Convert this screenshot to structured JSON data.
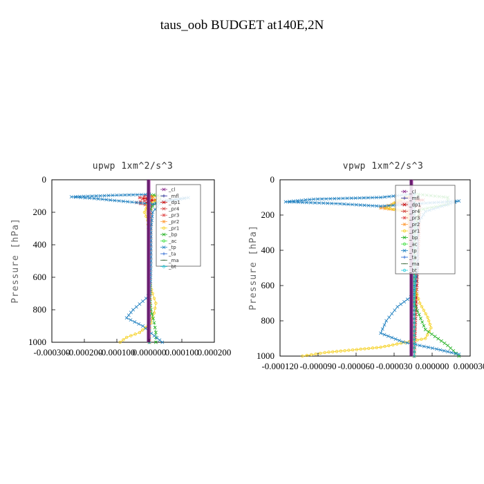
{
  "figure": {
    "title": "taus_oob  BUDGET at140E,2N"
  },
  "chart_data": [
    {
      "type": "line",
      "title": "upwp   1xm^2/s^3",
      "ylabel": "Pressure [hPa]",
      "xlabel": "",
      "xlim": [
        -0.0003,
        0.0002
      ],
      "ylim": [
        1000,
        0
      ],
      "x_tick_labels": [
        "-0.000300",
        "-0.000200",
        "-0.000100",
        "0.000000",
        "0.000100",
        "0.000200"
      ],
      "y_tick_labels": [
        "0",
        "200",
        "400",
        "600",
        "800",
        "1000"
      ],
      "y_ticks": [
        0,
        200,
        400,
        600,
        800,
        1000
      ],
      "legend_position": "upper-right",
      "series": [
        {
          "name": "_cl",
          "color": "#8c2d8c",
          "marker": "x",
          "points": [
            [
              0.0,
              90
            ],
            [
              0.0,
              200
            ],
            [
              0.0,
              400
            ],
            [
              0.0,
              600
            ],
            [
              0.0,
              800
            ],
            [
              0.0,
              1000
            ]
          ]
        },
        {
          "name": "_mfl",
          "color": "#2c2c9c",
          "marker": "+",
          "points": [
            [
              0.0,
              90
            ],
            [
              0.0,
              400
            ],
            [
              0.0,
              1000
            ]
          ]
        },
        {
          "name": "_dp1",
          "color": "#cc0000",
          "marker": "x",
          "points": [
            [
              0.0,
              90
            ],
            [
              1e-05,
              100
            ],
            [
              -2e-05,
              115
            ],
            [
              2e-05,
              125
            ],
            [
              -1e-05,
              140
            ],
            [
              1e-05,
              150
            ],
            [
              0.0,
              170
            ],
            [
              0.0,
              1000
            ]
          ]
        },
        {
          "name": "_pr4",
          "color": "#d04040",
          "marker": "x",
          "points": [
            [
              0.0,
              90
            ],
            [
              -5e-06,
              120
            ],
            [
              5e-06,
              140
            ],
            [
              0.0,
              1000
            ]
          ]
        },
        {
          "name": "_pr3",
          "color": "#e05050",
          "marker": "*",
          "points": [
            [
              0.0,
              90
            ],
            [
              -3e-05,
              110
            ],
            [
              -1.5e-05,
              130
            ],
            [
              -4e-05,
              140
            ],
            [
              0.0,
              160
            ],
            [
              0.0,
              1000
            ]
          ]
        },
        {
          "name": "_pr2",
          "color": "#ffa040",
          "marker": "*",
          "points": [
            [
              0.0,
              90
            ],
            [
              1e-05,
              110
            ],
            [
              -1e-05,
              150
            ],
            [
              -5e-06,
              200
            ],
            [
              0.0,
              300
            ],
            [
              0.0,
              1000
            ]
          ]
        },
        {
          "name": "_pr1",
          "color": "#f5d020",
          "marker": "o",
          "points": [
            [
              0.0,
              90
            ],
            [
              3e-05,
              110
            ],
            [
              -5e-06,
              160
            ],
            [
              -1.5e-05,
              200
            ],
            [
              -5e-06,
              250
            ],
            [
              0.0,
              400
            ],
            [
              -3e-06,
              600
            ],
            [
              1e-05,
              700
            ],
            [
              2e-05,
              760
            ],
            [
              1.5e-05,
              820
            ],
            [
              5e-06,
              880
            ],
            [
              -3e-05,
              940
            ],
            [
              -7e-05,
              970
            ],
            [
              -9e-05,
              1000
            ]
          ]
        },
        {
          "name": "_bp",
          "color": "#20b020",
          "marker": "x",
          "points": [
            [
              0.0,
              90
            ],
            [
              4e-05,
              100
            ],
            [
              3e-05,
              130
            ],
            [
              1e-05,
              160
            ],
            [
              0.0,
              200
            ],
            [
              0.0,
              700
            ],
            [
              5e-06,
              800
            ],
            [
              1.5e-05,
              880
            ],
            [
              2e-05,
              940
            ],
            [
              2e-05,
              1000
            ]
          ]
        },
        {
          "name": "_ac",
          "color": "#40e040",
          "marker": "o",
          "points": [
            [
              0.0,
              90
            ],
            [
              0.0,
              1000
            ]
          ]
        },
        {
          "name": "_tp",
          "color": "#2080c0",
          "marker": "x",
          "points": [
            [
              0.0,
              90
            ],
            [
              -0.0001,
              95
            ],
            [
              -0.00024,
              105
            ],
            [
              -0.00017,
              115
            ],
            [
              -0.00012,
              125
            ],
            [
              -4e-05,
              140
            ],
            [
              1e-05,
              150
            ],
            [
              0.00012,
              110
            ],
            [
              4e-05,
              130
            ],
            [
              1e-05,
              200
            ],
            [
              5e-06,
              300
            ],
            [
              5e-06,
              500
            ],
            [
              3e-06,
              700
            ],
            [
              -1e-05,
              730
            ],
            [
              -5e-05,
              800
            ],
            [
              -7e-05,
              850
            ],
            [
              -2e-05,
              900
            ],
            [
              1.5e-05,
              960
            ],
            [
              4e-05,
              1000
            ]
          ]
        },
        {
          "name": "_ta",
          "color": "#2060d0",
          "marker": "+",
          "points": [
            [
              0.0,
              90
            ],
            [
              0.0,
              1000
            ]
          ]
        },
        {
          "name": "_ma",
          "color": "#306030",
          "marker": "-",
          "points": [
            [
              0.0,
              90
            ],
            [
              0.0,
              1000
            ]
          ]
        },
        {
          "name": "_bt",
          "color": "#30d0e0",
          "marker": "o",
          "points": [
            [
              0.0,
              90
            ],
            [
              0.0,
              1000
            ]
          ]
        }
      ]
    },
    {
      "type": "line",
      "title": "vpwp   1xm^2/s^3",
      "ylabel": "Pressure [hPa]",
      "xlabel": "",
      "xlim": [
        -0.00012,
        5e-05
      ],
      "ylim": [
        1000,
        0
      ],
      "x_tick_labels": [
        "-0.000120",
        "-0.000090",
        "-0.000060",
        "-0.000030",
        "0.000000",
        "0.000030"
      ],
      "y_tick_labels": [
        "0",
        "200",
        "400",
        "600",
        "800",
        "1000"
      ],
      "y_ticks": [
        0,
        200,
        400,
        600,
        800,
        1000
      ],
      "legend_position": "upper-right",
      "series": [
        {
          "name": "_cl",
          "color": "#8c2d8c",
          "marker": "x",
          "points": [
            [
              0.0,
              80
            ],
            [
              0.0,
              300
            ],
            [
              0.0,
              600
            ],
            [
              0.0,
              1000
            ]
          ]
        },
        {
          "name": "_mfl",
          "color": "#2c2c9c",
          "marker": "+",
          "points": [
            [
              0.0,
              80
            ],
            [
              0.0,
              1000
            ]
          ]
        },
        {
          "name": "_dp1",
          "color": "#cc0000",
          "marker": "x",
          "points": [
            [
              0.0,
              80
            ],
            [
              -8e-06,
              100
            ],
            [
              8e-06,
              115
            ],
            [
              -1e-05,
              130
            ],
            [
              5e-06,
              150
            ],
            [
              0.0,
              1000
            ]
          ]
        },
        {
          "name": "_pr4",
          "color": "#d04040",
          "marker": "x",
          "points": [
            [
              0.0,
              80
            ],
            [
              0.0,
              1000
            ]
          ]
        },
        {
          "name": "_pr3",
          "color": "#e05050",
          "marker": "*",
          "points": [
            [
              0.0,
              80
            ],
            [
              -1e-05,
              110
            ],
            [
              -1.5e-05,
              130
            ],
            [
              -5e-06,
              150
            ],
            [
              0.0,
              1000
            ]
          ]
        },
        {
          "name": "_pr2",
          "color": "#ffa040",
          "marker": "*",
          "points": [
            [
              0.0,
              80
            ],
            [
              -1e-05,
              110
            ],
            [
              -2e-05,
              140
            ],
            [
              -3e-05,
              160
            ],
            [
              -5e-06,
              180
            ],
            [
              0.0,
              1000
            ]
          ]
        },
        {
          "name": "_pr1",
          "color": "#f5d020",
          "marker": "o",
          "points": [
            [
              0.0,
              80
            ],
            [
              -1.5e-05,
              120
            ],
            [
              -2.5e-05,
              160
            ],
            [
              -8e-06,
              180
            ],
            [
              0.0,
              300
            ],
            [
              0.0,
              600
            ],
            [
              5e-06,
              700
            ],
            [
              1.2e-05,
              780
            ],
            [
              1.5e-05,
              840
            ],
            [
              1e-05,
              900
            ],
            [
              -3e-05,
              950
            ],
            [
              -8e-05,
              980
            ],
            [
              -0.0001,
              1000
            ]
          ]
        },
        {
          "name": "_bp",
          "color": "#20b020",
          "marker": "x",
          "points": [
            [
              0.0,
              80
            ],
            [
              3e-05,
              100
            ],
            [
              3e-05,
              140
            ],
            [
              5e-06,
              170
            ],
            [
              0.0,
              300
            ],
            [
              0.0,
              700
            ],
            [
              1e-05,
              850
            ],
            [
              3e-05,
              940
            ],
            [
              4e-05,
              1000
            ]
          ]
        },
        {
          "name": "_ac",
          "color": "#40e040",
          "marker": "o",
          "points": [
            [
              0.0,
              80
            ],
            [
              0.0,
              1000
            ]
          ]
        },
        {
          "name": "_tp",
          "color": "#2080c0",
          "marker": "x",
          "points": [
            [
              0.0,
              80
            ],
            [
              -3e-05,
              100
            ],
            [
              -9e-05,
              110
            ],
            [
              -0.000115,
              125
            ],
            [
              -7e-05,
              135
            ],
            [
              -3e-05,
              150
            ],
            [
              4e-05,
              120
            ],
            [
              1e-05,
              180
            ],
            [
              3e-06,
              250
            ],
            [
              3e-06,
              500
            ],
            [
              0.0,
              650
            ],
            [
              -1.5e-05,
              720
            ],
            [
              -2.5e-05,
              800
            ],
            [
              -3e-05,
              870
            ],
            [
              -1e-05,
              920
            ],
            [
              2e-05,
              960
            ],
            [
              4e-05,
              990
            ]
          ]
        },
        {
          "name": "_ta",
          "color": "#2060d0",
          "marker": "+",
          "points": [
            [
              0.0,
              80
            ],
            [
              0.0,
              1000
            ]
          ]
        },
        {
          "name": "_ma",
          "color": "#306030",
          "marker": "-",
          "points": [
            [
              0.0,
              80
            ],
            [
              0.0,
              1000
            ]
          ]
        },
        {
          "name": "_bt",
          "color": "#30d0e0",
          "marker": "o",
          "points": [
            [
              0.0,
              80
            ],
            [
              0.0,
              1000
            ]
          ]
        }
      ]
    }
  ]
}
